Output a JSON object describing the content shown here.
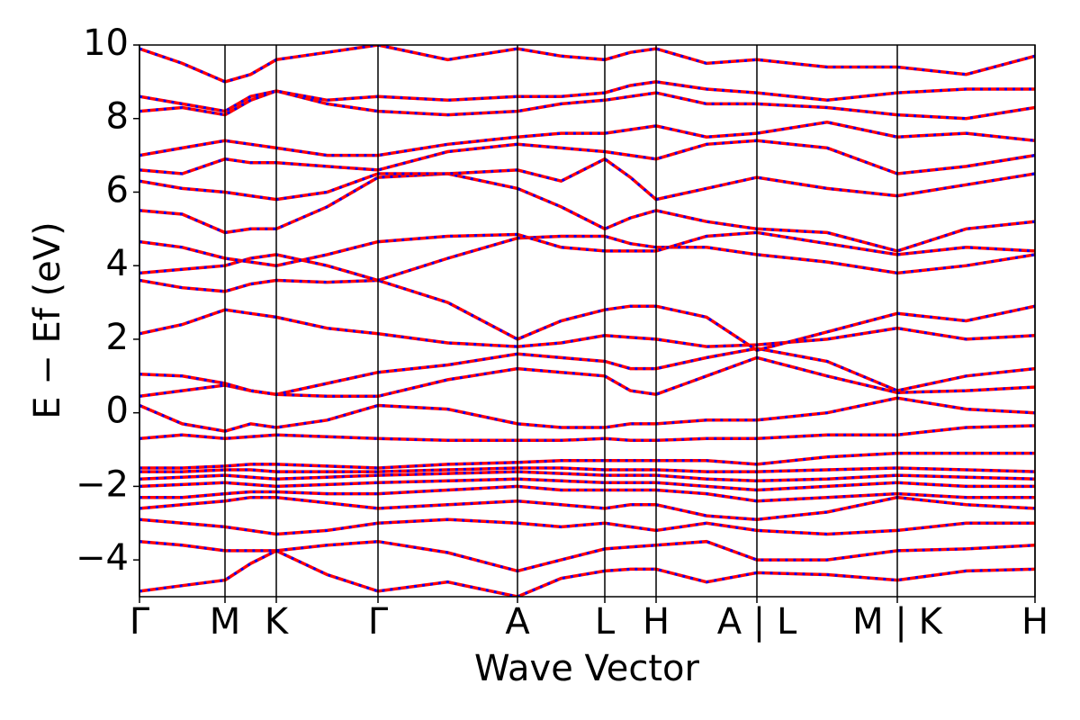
{
  "chart_data": {
    "type": "line",
    "xlabel": "Wave Vector",
    "ylabel": "E − Ef (eV)",
    "color": "#ff0000",
    "dash_color": "#0000ff",
    "xlim": [
      0,
      9.95
    ],
    "xticks": [
      {
        "value": 0,
        "label": "Γ"
      },
      {
        "value": 0.95,
        "label": "M"
      },
      {
        "value": 1.52,
        "label": "K"
      },
      {
        "value": 2.65,
        "label": "Γ"
      },
      {
        "value": 4.2,
        "label": "A"
      },
      {
        "value": 5.17,
        "label": "L"
      },
      {
        "value": 5.74,
        "label": "H"
      },
      {
        "value": 6.86,
        "label": "A | L"
      },
      {
        "value": 8.42,
        "label": "M | K"
      },
      {
        "value": 9.95,
        "label": "H"
      }
    ],
    "ylim": [
      -5,
      10
    ],
    "yticks": [
      {
        "value": -4,
        "label": "−4"
      },
      {
        "value": -2,
        "label": "−2"
      },
      0,
      2,
      4,
      6,
      8,
      10
    ],
    "x": [
      0,
      0.475,
      0.95,
      1.235,
      1.52,
      2.085,
      2.65,
      3.425,
      4.2,
      4.685,
      5.17,
      5.455,
      5.74,
      6.3,
      6.86,
      7.64,
      8.42,
      9.185,
      9.95
    ],
    "series": [
      {
        "values": [
          -4.85,
          -4.7,
          -4.55,
          -4.1,
          -3.75,
          -4.4,
          -4.85,
          -4.6,
          -5.0,
          -4.5,
          -4.3,
          -4.25,
          -4.25,
          -4.6,
          -4.35,
          -4.4,
          -4.55,
          -4.3,
          -4.25
        ]
      },
      {
        "values": [
          -3.5,
          -3.6,
          -3.75,
          -3.75,
          -3.75,
          -3.6,
          -3.5,
          -3.8,
          -4.3,
          -4.0,
          -3.7,
          -3.65,
          -3.6,
          -3.5,
          -4.0,
          -4.0,
          -3.75,
          -3.7,
          -3.6
        ]
      },
      {
        "values": [
          -2.9,
          -3.0,
          -3.1,
          -3.2,
          -3.3,
          -3.2,
          -3.0,
          -2.9,
          -3.0,
          -3.1,
          -3.0,
          -3.1,
          -3.2,
          -3.0,
          -3.2,
          -3.3,
          -3.2,
          -3.0,
          -3.0
        ]
      },
      {
        "values": [
          -2.6,
          -2.5,
          -2.4,
          -2.3,
          -2.3,
          -2.45,
          -2.6,
          -2.5,
          -2.4,
          -2.5,
          -2.6,
          -2.5,
          -2.5,
          -2.8,
          -2.9,
          -2.7,
          -2.3,
          -2.5,
          -2.6
        ]
      },
      {
        "values": [
          -2.3,
          -2.3,
          -2.2,
          -2.15,
          -2.15,
          -2.2,
          -2.2,
          -2.1,
          -2.0,
          -2.1,
          -2.1,
          -2.1,
          -2.1,
          -2.2,
          -2.4,
          -2.3,
          -2.2,
          -2.3,
          -2.3
        ]
      },
      {
        "values": [
          -2.0,
          -1.95,
          -1.9,
          -1.95,
          -2.0,
          -1.95,
          -1.9,
          -1.85,
          -1.8,
          -1.85,
          -1.9,
          -1.9,
          -1.9,
          -2.0,
          -2.1,
          -2.0,
          -1.9,
          -2.0,
          -2.0
        ]
      },
      {
        "values": [
          -1.8,
          -1.75,
          -1.7,
          -1.75,
          -1.8,
          -1.75,
          -1.7,
          -1.65,
          -1.6,
          -1.65,
          -1.7,
          -1.7,
          -1.7,
          -1.8,
          -1.85,
          -1.8,
          -1.7,
          -1.75,
          -1.8
        ]
      },
      {
        "values": [
          -1.6,
          -1.6,
          -1.55,
          -1.55,
          -1.6,
          -1.6,
          -1.6,
          -1.55,
          -1.5,
          -1.5,
          -1.55,
          -1.55,
          -1.55,
          -1.6,
          -1.6,
          -1.55,
          -1.5,
          -1.55,
          -1.6
        ]
      },
      {
        "values": [
          -1.5,
          -1.5,
          -1.45,
          -1.4,
          -1.4,
          -1.45,
          -1.5,
          -1.4,
          -1.35,
          -1.3,
          -1.3,
          -1.3,
          -1.3,
          -1.3,
          -1.4,
          -1.2,
          -1.1,
          -1.1,
          -1.1
        ]
      },
      {
        "values": [
          -0.7,
          -0.6,
          -0.7,
          -0.65,
          -0.6,
          -0.65,
          -0.7,
          -0.75,
          -0.75,
          -0.75,
          -0.7,
          -0.75,
          -0.75,
          -0.7,
          -0.7,
          -0.6,
          -0.6,
          -0.4,
          -0.35
        ]
      },
      {
        "values": [
          0.2,
          -0.3,
          -0.5,
          -0.3,
          -0.4,
          -0.2,
          0.2,
          0.1,
          -0.3,
          -0.4,
          -0.4,
          -0.3,
          -0.3,
          -0.2,
          -0.2,
          0.0,
          0.4,
          0.1,
          0.0
        ]
      },
      {
        "values": [
          0.45,
          0.6,
          0.75,
          0.6,
          0.5,
          0.45,
          0.45,
          0.9,
          1.2,
          1.1,
          1.0,
          0.6,
          0.5,
          1.0,
          1.5,
          1.0,
          0.55,
          0.6,
          0.7
        ]
      },
      {
        "values": [
          1.05,
          1.0,
          0.8,
          0.6,
          0.5,
          0.8,
          1.1,
          1.3,
          1.6,
          1.5,
          1.4,
          1.2,
          1.2,
          1.5,
          1.75,
          1.4,
          0.6,
          1.0,
          1.2
        ]
      },
      {
        "values": [
          2.15,
          2.4,
          2.8,
          2.7,
          2.6,
          2.3,
          2.15,
          1.9,
          1.8,
          1.9,
          2.1,
          2.05,
          2.0,
          1.8,
          1.85,
          2.0,
          2.3,
          2.0,
          2.1
        ]
      },
      {
        "values": [
          3.6,
          3.4,
          3.3,
          3.5,
          3.6,
          3.55,
          3.6,
          3.0,
          2.0,
          2.5,
          2.8,
          2.9,
          2.9,
          2.6,
          1.7,
          2.2,
          2.7,
          2.5,
          2.9
        ]
      },
      {
        "values": [
          3.8,
          3.9,
          4.0,
          4.2,
          4.3,
          4.0,
          3.6,
          4.2,
          4.75,
          4.8,
          4.8,
          4.6,
          4.5,
          4.5,
          4.3,
          4.1,
          3.8,
          4.0,
          4.3
        ]
      },
      {
        "values": [
          4.65,
          4.5,
          4.2,
          4.1,
          4.0,
          4.3,
          4.65,
          4.8,
          4.85,
          4.5,
          4.4,
          4.4,
          4.4,
          4.8,
          4.9,
          4.6,
          4.3,
          4.5,
          4.4
        ]
      },
      {
        "values": [
          5.5,
          5.4,
          4.9,
          5.0,
          5.0,
          5.6,
          6.4,
          6.5,
          6.1,
          5.6,
          5.0,
          5.3,
          5.5,
          5.2,
          5.0,
          4.9,
          4.4,
          5.0,
          5.2
        ]
      },
      {
        "values": [
          6.3,
          6.1,
          6.0,
          5.9,
          5.8,
          6.0,
          6.5,
          6.5,
          6.6,
          6.3,
          6.9,
          6.4,
          5.8,
          6.1,
          6.4,
          6.1,
          5.9,
          6.2,
          6.5
        ]
      },
      {
        "values": [
          6.6,
          6.5,
          6.9,
          6.8,
          6.8,
          6.7,
          6.6,
          7.1,
          7.3,
          7.2,
          7.1,
          7.0,
          6.9,
          7.3,
          7.4,
          7.2,
          6.5,
          6.7,
          7.0
        ]
      },
      {
        "values": [
          7.0,
          7.2,
          7.4,
          7.3,
          7.2,
          7.0,
          7.0,
          7.3,
          7.5,
          7.6,
          7.6,
          7.7,
          7.8,
          7.5,
          7.6,
          7.9,
          7.5,
          7.6,
          7.4
        ]
      },
      {
        "values": [
          8.2,
          8.3,
          8.1,
          8.5,
          8.75,
          8.4,
          8.2,
          8.1,
          8.2,
          8.4,
          8.5,
          8.6,
          8.7,
          8.4,
          8.4,
          8.3,
          8.1,
          8.0,
          8.3
        ]
      },
      {
        "values": [
          8.6,
          8.4,
          8.2,
          8.6,
          8.75,
          8.5,
          8.6,
          8.5,
          8.6,
          8.6,
          8.7,
          8.9,
          9.0,
          8.8,
          8.7,
          8.5,
          8.7,
          8.8,
          8.8
        ]
      },
      {
        "values": [
          9.9,
          9.5,
          9.0,
          9.2,
          9.6,
          9.8,
          10.0,
          9.6,
          9.9,
          9.7,
          9.6,
          9.8,
          9.9,
          9.5,
          9.6,
          9.4,
          9.4,
          9.2,
          9.7
        ]
      }
    ]
  }
}
